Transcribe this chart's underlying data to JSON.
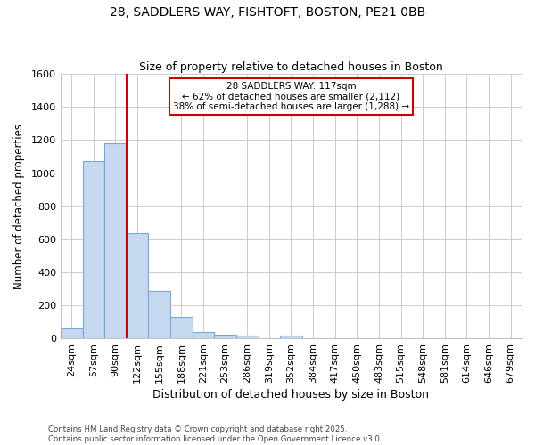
{
  "title_line1": "28, SADDLERS WAY, FISHTOFT, BOSTON, PE21 0BB",
  "title_line2": "Size of property relative to detached houses in Boston",
  "xlabel": "Distribution of detached houses by size in Boston",
  "ylabel": "Number of detached properties",
  "categories": [
    "24sqm",
    "57sqm",
    "90sqm",
    "122sqm",
    "155sqm",
    "188sqm",
    "221sqm",
    "253sqm",
    "286sqm",
    "319sqm",
    "352sqm",
    "384sqm",
    "417sqm",
    "450sqm",
    "483sqm",
    "515sqm",
    "548sqm",
    "581sqm",
    "614sqm",
    "646sqm",
    "679sqm"
  ],
  "values": [
    60,
    1075,
    1180,
    635,
    285,
    130,
    38,
    23,
    17,
    0,
    15,
    0,
    0,
    0,
    0,
    0,
    0,
    0,
    0,
    0,
    0
  ],
  "bar_color": "#c5d8f0",
  "bar_edge_color": "#7aaad4",
  "vline_x_index": 2.5,
  "vline_color": "#cc0000",
  "annotation_text": "28 SADDLERS WAY: 117sqm\n← 62% of detached houses are smaller (2,112)\n38% of semi-detached houses are larger (1,288) →",
  "annotation_box_color": "white",
  "annotation_box_edge": "#cc0000",
  "ylim": [
    0,
    1600
  ],
  "yticks": [
    0,
    200,
    400,
    600,
    800,
    1000,
    1200,
    1400,
    1600
  ],
  "grid_color": "#cccccc",
  "background_color": "white",
  "footer_line1": "Contains HM Land Registry data © Crown copyright and database right 2025.",
  "footer_line2": "Contains public sector information licensed under the Open Government Licence v3.0."
}
